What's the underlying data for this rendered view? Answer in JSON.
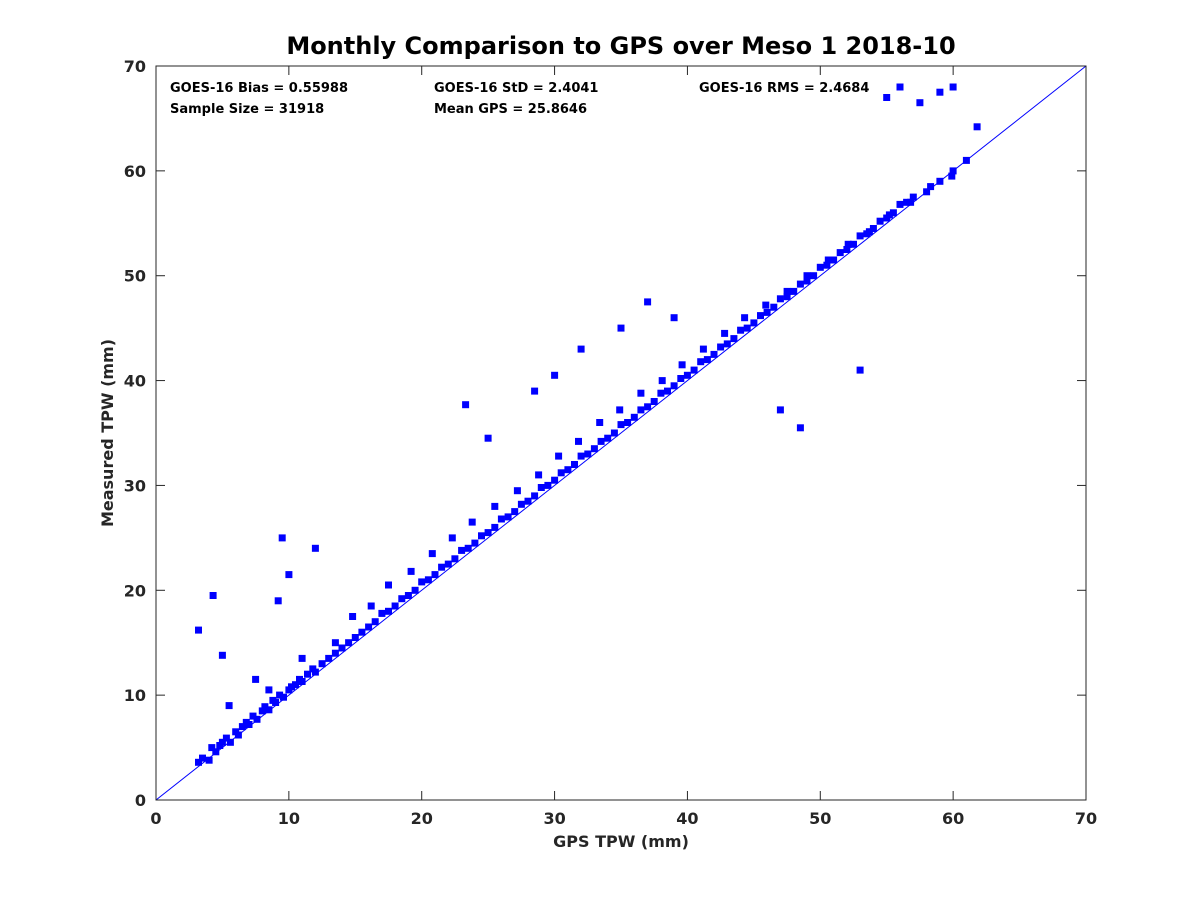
{
  "chart_data": {
    "type": "scatter",
    "title": "Monthly Comparison to GPS over Meso 1 2018-10",
    "xlabel": "GPS TPW (mm)",
    "ylabel": "Measured TPW (mm)",
    "xlim": [
      0,
      70
    ],
    "ylim": [
      0,
      70
    ],
    "xticks": [
      0,
      10,
      20,
      30,
      40,
      50,
      60,
      70
    ],
    "yticks": [
      0,
      10,
      20,
      30,
      40,
      50,
      60,
      70
    ],
    "grid": false,
    "stats": {
      "bias": "GOES-16 Bias = 0.55988",
      "std": "GOES-16 StD = 2.4041",
      "rms": "GOES-16 RMS = 2.4684",
      "sample_size": "Sample Size = 31918",
      "mean_gps": "Mean GPS = 25.8646"
    },
    "reference_line": {
      "x": [
        0,
        70
      ],
      "y": [
        0,
        70
      ]
    },
    "series": [
      {
        "marker_color": "#0000ff",
        "marker": "square",
        "x": [
          3.2,
          3.5,
          4.0,
          4.2,
          4.5,
          4.8,
          5.0,
          5.3,
          5.6,
          6.0,
          6.2,
          6.5,
          6.8,
          7.0,
          7.3,
          7.6,
          8.0,
          8.2,
          8.5,
          8.8,
          9.0,
          9.3,
          9.6,
          10.0,
          10.2,
          10.5,
          10.8,
          11.0,
          11.4,
          11.8,
          12.0,
          12.5,
          13.0,
          13.5,
          14.0,
          14.5,
          15.0,
          15.5,
          16.0,
          16.5,
          17.0,
          17.5,
          18.0,
          18.5,
          19.0,
          19.5,
          20.0,
          20.5,
          21.0,
          21.5,
          22.0,
          22.5,
          23.0,
          23.5,
          24.0,
          24.5,
          25.0,
          25.5,
          26.0,
          26.5,
          27.0,
          27.5,
          28.0,
          28.5,
          29.0,
          29.5,
          30.0,
          30.5,
          31.0,
          31.5,
          32.0,
          32.5,
          33.0,
          33.5,
          34.0,
          34.5,
          35.0,
          35.5,
          36.0,
          36.5,
          37.0,
          37.5,
          38.0,
          38.5,
          39.0,
          39.5,
          40.0,
          40.5,
          41.0,
          41.5,
          42.0,
          42.5,
          43.0,
          43.5,
          44.0,
          44.5,
          45.0,
          45.5,
          46.0,
          46.5,
          47.0,
          47.5,
          48.0,
          48.5,
          49.0,
          49.5,
          50.0,
          50.5,
          51.0,
          51.5,
          52.0,
          52.5,
          53.0,
          53.5,
          54.0,
          54.5,
          55.0,
          55.5,
          56.0,
          56.5,
          57.0,
          58.0,
          59.0,
          60.0,
          61.0,
          4.3,
          3.2,
          5.0,
          9.5,
          10.0,
          12.0,
          9.2,
          23.3,
          25.0,
          28.5,
          30.0,
          32.0,
          35.0,
          37.0,
          39.0,
          47.0,
          48.5,
          53.0,
          55.0,
          56.0,
          57.5,
          59.0,
          60.0,
          61.8,
          5.5,
          7.5,
          8.5,
          11.0,
          13.5,
          14.8,
          16.2,
          17.5,
          19.2,
          20.8,
          22.3,
          23.8,
          25.5,
          27.2,
          28.8,
          30.3,
          31.8,
          33.4,
          34.9,
          36.5,
          38.1,
          39.6,
          41.2,
          42.8,
          44.3,
          45.9,
          47.5,
          49.0,
          50.6,
          52.1,
          53.7,
          55.2,
          56.8,
          58.3,
          59.9
        ],
        "y": [
          3.6,
          4.0,
          3.8,
          5.0,
          4.6,
          5.2,
          5.5,
          5.9,
          5.5,
          6.5,
          6.2,
          7.0,
          7.4,
          7.2,
          8.0,
          7.7,
          8.5,
          8.9,
          8.6,
          9.5,
          9.3,
          10.0,
          9.8,
          10.5,
          10.8,
          11.0,
          11.5,
          11.3,
          12.0,
          12.5,
          12.2,
          13.0,
          13.5,
          14.0,
          14.5,
          15.0,
          15.5,
          16.0,
          16.5,
          17.0,
          17.8,
          18.0,
          18.5,
          19.2,
          19.5,
          20.0,
          20.8,
          21.0,
          21.5,
          22.2,
          22.5,
          23.0,
          23.8,
          24.0,
          24.5,
          25.2,
          25.5,
          26.0,
          26.8,
          27.0,
          27.5,
          28.2,
          28.5,
          29.0,
          29.8,
          30.0,
          30.5,
          31.2,
          31.5,
          32.0,
          32.8,
          33.0,
          33.5,
          34.2,
          34.5,
          35.0,
          35.8,
          36.0,
          36.5,
          37.2,
          37.5,
          38.0,
          38.8,
          39.0,
          39.5,
          40.2,
          40.5,
          41.0,
          41.8,
          42.0,
          42.5,
          43.2,
          43.5,
          44.0,
          44.8,
          45.0,
          45.5,
          46.2,
          46.5,
          47.0,
          47.8,
          48.0,
          48.5,
          49.2,
          49.5,
          50.0,
          50.8,
          51.0,
          51.5,
          52.2,
          52.5,
          53.0,
          53.8,
          54.0,
          54.5,
          55.2,
          55.5,
          56.0,
          56.8,
          57.0,
          57.5,
          58.0,
          59.0,
          60.0,
          61.0,
          19.5,
          16.2,
          13.8,
          25.0,
          21.5,
          24.0,
          19.0,
          37.7,
          34.5,
          39.0,
          40.5,
          43.0,
          45.0,
          47.5,
          46.0,
          37.2,
          35.5,
          41.0,
          67.0,
          68.0,
          66.5,
          67.5,
          68.0,
          64.2,
          9.0,
          11.5,
          10.5,
          13.5,
          15.0,
          17.5,
          18.5,
          20.5,
          21.8,
          23.5,
          25.0,
          26.5,
          28.0,
          29.5,
          31.0,
          32.8,
          34.2,
          36.0,
          37.2,
          38.8,
          40.0,
          41.5,
          43.0,
          44.5,
          46.0,
          47.2,
          48.5,
          50.0,
          51.5,
          53.0,
          54.2,
          55.8,
          57.0,
          58.5,
          59.5
        ]
      }
    ]
  }
}
